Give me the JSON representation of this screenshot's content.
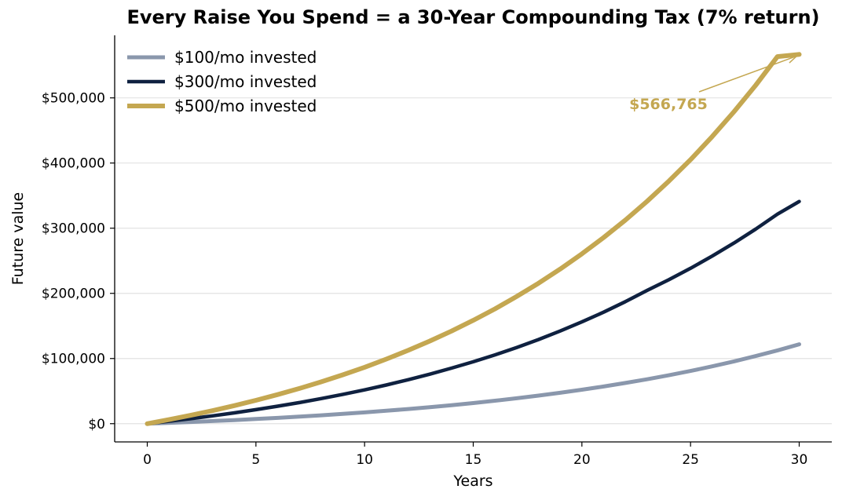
{
  "chart_data": {
    "type": "line",
    "title": "Every Raise You Spend = a 30-Year Compounding Tax (7% return)",
    "xlabel": "Years",
    "ylabel": "Future value",
    "xlim": [
      -1.5,
      31.5
    ],
    "ylim": [
      -28000,
      596000
    ],
    "x_ticks": [
      0,
      5,
      10,
      15,
      20,
      25,
      30
    ],
    "y_ticks": [
      0,
      100000,
      200000,
      300000,
      400000,
      500000
    ],
    "y_tick_labels": [
      "$0",
      "$100,000",
      "$200,000",
      "$300,000",
      "$400,000",
      "$500,000"
    ],
    "grid": "horizontal",
    "legend_position": "top-left",
    "x": [
      0,
      1,
      2,
      3,
      4,
      5,
      6,
      7,
      8,
      9,
      10,
      11,
      12,
      13,
      14,
      15,
      16,
      17,
      18,
      19,
      20,
      21,
      22,
      23,
      24,
      25,
      26,
      27,
      28,
      29,
      30
    ],
    "series": [
      {
        "name": "$100/mo invested",
        "color": "#8a97ac",
        "values": [
          0,
          1240,
          2570,
          3996,
          5525,
          7164,
          8920,
          10804,
          12823,
          14988,
          17308,
          19797,
          22465,
          25326,
          28394,
          31683,
          35210,
          38991,
          43046,
          47393,
          52054,
          57051,
          62409,
          68155,
          74316,
          80921,
          88003,
          95597,
          103740,
          112470,
          121831
        ]
      },
      {
        "name": "$300/mo invested",
        "color": "#0f2140",
        "values": [
          0,
          3720,
          7709,
          11987,
          16574,
          21492,
          26761,
          32412,
          38469,
          44963,
          51925,
          59390,
          67395,
          75977,
          85180,
          95048,
          105629,
          116973,
          129138,
          142180,
          156163,
          171154,
          187228,
          204465,
          220885,
          238451,
          257228,
          277290,
          298713,
          321575,
          341000
        ]
      },
      {
        "name": "$500/mo invested",
        "color": "#c4a751",
        "values": [
          0,
          6200,
          12848,
          19978,
          27623,
          35820,
          44609,
          54034,
          64140,
          74977,
          86597,
          99057,
          112417,
          126742,
          142103,
          158574,
          176236,
          195174,
          215479,
          237252,
          260599,
          285633,
          312476,
          341259,
          372122,
          405217,
          440702,
          478755,
          519553,
          563300,
          566765
        ]
      }
    ],
    "annotations": [
      {
        "text": "$566,765",
        "x": 30,
        "y": 566765,
        "color": "#c4a751"
      }
    ]
  }
}
